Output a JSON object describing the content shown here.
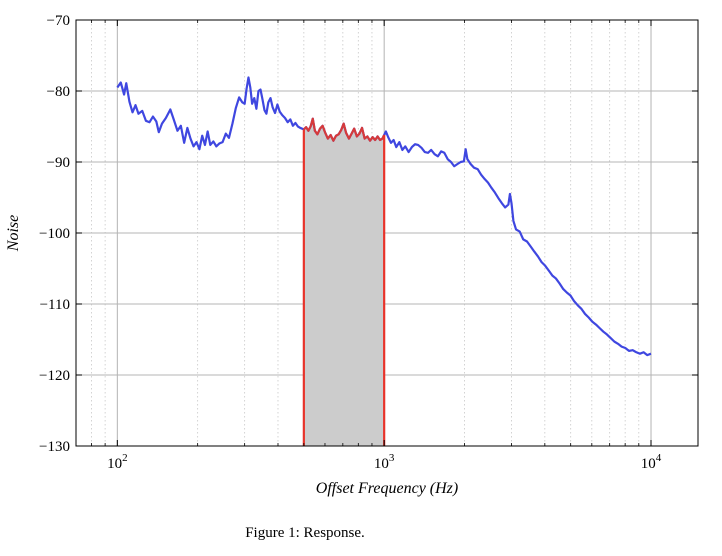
{
  "chart_data": {
    "type": "line",
    "xscale": "log",
    "xlim": [
      70,
      15000
    ],
    "ylim": [
      -130,
      -70
    ],
    "xlabel": "Offset Frequency (Hz)",
    "ylabel": "Noise",
    "x_ticks": [
      {
        "value": 100,
        "base": "10",
        "exp": "2"
      },
      {
        "value": 1000,
        "base": "10",
        "exp": "3"
      },
      {
        "value": 10000,
        "base": "10",
        "exp": "4"
      }
    ],
    "y_ticks": [
      {
        "value": -70,
        "label": "−70"
      },
      {
        "value": -80,
        "label": "−80"
      },
      {
        "value": -90,
        "label": "−90"
      },
      {
        "value": -100,
        "label": "−100"
      },
      {
        "value": -110,
        "label": "−110"
      },
      {
        "value": -120,
        "label": "−120"
      },
      {
        "value": -130,
        "label": "−130"
      }
    ],
    "grid": true,
    "minor_grid": true,
    "shaded_band": {
      "x_start": 500,
      "x_end": 1000,
      "color": "#cccccc",
      "edge_color": "#e8332a"
    },
    "series": [
      {
        "color": "#3f47e0",
        "highlight_color": "#d63a3a",
        "points": [
          [
            100,
            -79.5
          ],
          [
            103,
            -78.8
          ],
          [
            106,
            -80.5
          ],
          [
            108,
            -78.9
          ],
          [
            111,
            -81.5
          ],
          [
            114,
            -83.0
          ],
          [
            117,
            -82.0
          ],
          [
            120,
            -83.2
          ],
          [
            124,
            -82.8
          ],
          [
            128,
            -84.2
          ],
          [
            132,
            -84.4
          ],
          [
            136,
            -83.6
          ],
          [
            140,
            -84.3
          ],
          [
            143,
            -85.8
          ],
          [
            147,
            -84.6
          ],
          [
            152,
            -83.8
          ],
          [
            158,
            -82.6
          ],
          [
            163,
            -84.1
          ],
          [
            168,
            -85.6
          ],
          [
            173,
            -84.9
          ],
          [
            178,
            -87.3
          ],
          [
            183,
            -85.2
          ],
          [
            188,
            -86.7
          ],
          [
            193,
            -87.8
          ],
          [
            198,
            -87.2
          ],
          [
            203,
            -88.2
          ],
          [
            208,
            -86.3
          ],
          [
            213,
            -87.6
          ],
          [
            218,
            -85.7
          ],
          [
            223,
            -87.6
          ],
          [
            229,
            -87.1
          ],
          [
            235,
            -87.8
          ],
          [
            241,
            -87.4
          ],
          [
            248,
            -87.2
          ],
          [
            255,
            -86.0
          ],
          [
            262,
            -86.6
          ],
          [
            270,
            -84.6
          ],
          [
            278,
            -82.4
          ],
          [
            286,
            -80.9
          ],
          [
            294,
            -81.6
          ],
          [
            300,
            -81.8
          ],
          [
            305,
            -79.7
          ],
          [
            310,
            -78.1
          ],
          [
            315,
            -79.5
          ],
          [
            320,
            -81.8
          ],
          [
            326,
            -81.0
          ],
          [
            332,
            -82.5
          ],
          [
            338,
            -80.0
          ],
          [
            344,
            -79.8
          ],
          [
            350,
            -81.2
          ],
          [
            356,
            -82.7
          ],
          [
            362,
            -83.2
          ],
          [
            368,
            -81.6
          ],
          [
            375,
            -81.0
          ],
          [
            382,
            -82.3
          ],
          [
            390,
            -83.1
          ],
          [
            398,
            -81.9
          ],
          [
            406,
            -82.9
          ],
          [
            415,
            -83.4
          ],
          [
            425,
            -83.8
          ],
          [
            435,
            -84.4
          ],
          [
            445,
            -84.0
          ],
          [
            455,
            -84.9
          ],
          [
            465,
            -84.5
          ],
          [
            475,
            -85.0
          ],
          [
            485,
            -85.2
          ],
          [
            500,
            -85.4
          ],
          [
            510,
            -85.1
          ],
          [
            520,
            -85.6
          ],
          [
            530,
            -85.0
          ],
          [
            540,
            -83.9
          ],
          [
            550,
            -85.6
          ],
          [
            562,
            -86.1
          ],
          [
            575,
            -85.3
          ],
          [
            588,
            -84.9
          ],
          [
            600,
            -85.8
          ],
          [
            615,
            -86.7
          ],
          [
            630,
            -86.2
          ],
          [
            645,
            -87.0
          ],
          [
            660,
            -86.3
          ],
          [
            675,
            -86.1
          ],
          [
            690,
            -85.5
          ],
          [
            705,
            -84.6
          ],
          [
            720,
            -85.9
          ],
          [
            738,
            -86.7
          ],
          [
            755,
            -86.0
          ],
          [
            772,
            -85.3
          ],
          [
            790,
            -86.4
          ],
          [
            808,
            -86.0
          ],
          [
            826,
            -85.2
          ],
          [
            845,
            -86.7
          ],
          [
            865,
            -86.4
          ],
          [
            885,
            -87.0
          ],
          [
            905,
            -86.5
          ],
          [
            925,
            -86.9
          ],
          [
            945,
            -86.4
          ],
          [
            965,
            -86.9
          ],
          [
            985,
            -86.7
          ],
          [
            1000,
            -86.2
          ],
          [
            1015,
            -85.7
          ],
          [
            1035,
            -86.5
          ],
          [
            1060,
            -87.3
          ],
          [
            1085,
            -86.9
          ],
          [
            1110,
            -87.9
          ],
          [
            1140,
            -87.2
          ],
          [
            1170,
            -88.3
          ],
          [
            1200,
            -87.8
          ],
          [
            1235,
            -88.6
          ],
          [
            1270,
            -87.9
          ],
          [
            1305,
            -87.5
          ],
          [
            1340,
            -87.6
          ],
          [
            1380,
            -88.0
          ],
          [
            1420,
            -88.6
          ],
          [
            1460,
            -88.7
          ],
          [
            1500,
            -88.3
          ],
          [
            1545,
            -88.9
          ],
          [
            1590,
            -89.2
          ],
          [
            1635,
            -88.5
          ],
          [
            1680,
            -88.7
          ],
          [
            1730,
            -89.6
          ],
          [
            1780,
            -90.0
          ],
          [
            1830,
            -90.6
          ],
          [
            1880,
            -90.3
          ],
          [
            1935,
            -90.0
          ],
          [
            1990,
            -89.9
          ],
          [
            2020,
            -88.2
          ],
          [
            2050,
            -89.6
          ],
          [
            2110,
            -90.3
          ],
          [
            2170,
            -90.8
          ],
          [
            2240,
            -91.0
          ],
          [
            2310,
            -91.8
          ],
          [
            2380,
            -92.4
          ],
          [
            2450,
            -92.9
          ],
          [
            2520,
            -93.6
          ],
          [
            2600,
            -94.3
          ],
          [
            2680,
            -95.1
          ],
          [
            2760,
            -95.8
          ],
          [
            2840,
            -96.4
          ],
          [
            2920,
            -96.0
          ],
          [
            2960,
            -94.5
          ],
          [
            3000,
            -95.8
          ],
          [
            3050,
            -98.3
          ],
          [
            3120,
            -99.5
          ],
          [
            3220,
            -99.8
          ],
          [
            3320,
            -100.9
          ],
          [
            3430,
            -101.2
          ],
          [
            3540,
            -101.9
          ],
          [
            3650,
            -102.6
          ],
          [
            3770,
            -103.3
          ],
          [
            3890,
            -104.1
          ],
          [
            4010,
            -104.6
          ],
          [
            4140,
            -105.3
          ],
          [
            4270,
            -106.0
          ],
          [
            4400,
            -106.4
          ],
          [
            4540,
            -107.1
          ],
          [
            4690,
            -107.9
          ],
          [
            4840,
            -108.4
          ],
          [
            4990,
            -108.8
          ],
          [
            5150,
            -109.6
          ],
          [
            5320,
            -110.2
          ],
          [
            5490,
            -110.7
          ],
          [
            5660,
            -111.4
          ],
          [
            5840,
            -111.9
          ],
          [
            6030,
            -112.5
          ],
          [
            6220,
            -112.9
          ],
          [
            6420,
            -113.4
          ],
          [
            6630,
            -113.9
          ],
          [
            6840,
            -114.3
          ],
          [
            7060,
            -114.8
          ],
          [
            7290,
            -115.3
          ],
          [
            7520,
            -115.6
          ],
          [
            7760,
            -116.0
          ],
          [
            8010,
            -116.2
          ],
          [
            8270,
            -116.6
          ],
          [
            8540,
            -116.5
          ],
          [
            8810,
            -116.8
          ],
          [
            9090,
            -117.0
          ],
          [
            9380,
            -116.8
          ],
          [
            9680,
            -117.2
          ],
          [
            10000,
            -117.0
          ]
        ]
      }
    ]
  },
  "caption": "Figure 1:  Response."
}
